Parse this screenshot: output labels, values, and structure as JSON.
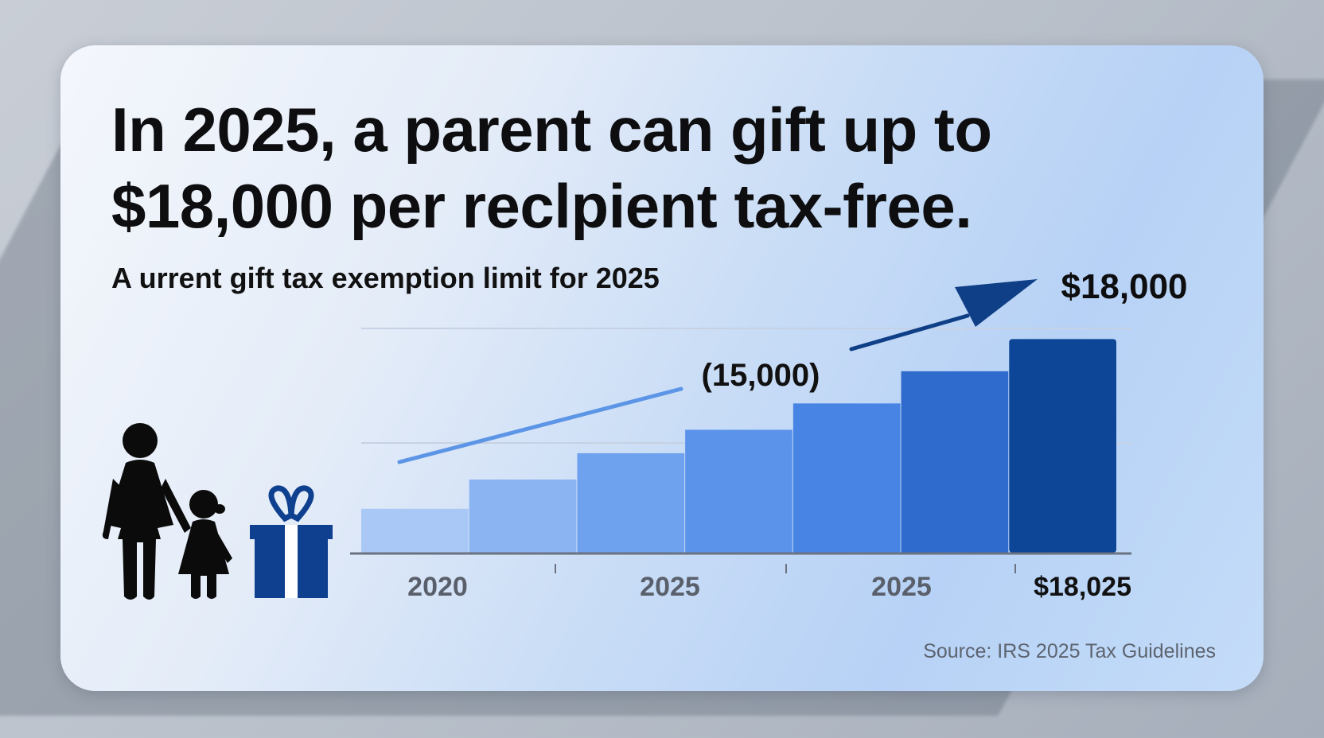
{
  "card": {
    "title": "In 2025, a parent can gift up to $18,000 per reclpient tax-free.",
    "subtitle": "A urrent gift tax exemption limit for 2025",
    "source": "Source: IRS 2025 Tax Guidelines"
  },
  "colors": {
    "bars": [
      "#a9c8f6",
      "#8ab4f2",
      "#6ea2ee",
      "#5b92ea",
      "#4884e3",
      "#2f6bcc",
      "#0d4597"
    ],
    "trend_light": "#5d95e6",
    "trend_dark": "#0f3f86",
    "gift_box": "#0f3f8f"
  },
  "icons": [
    "parent-icon",
    "child-icon",
    "gift-box-icon"
  ],
  "chart_data": {
    "type": "bar",
    "categories": [
      "",
      "",
      "",
      "",
      "",
      "",
      ""
    ],
    "values": [
      15,
      25,
      34,
      42,
      51,
      62,
      73
    ],
    "ylim": [
      0,
      100
    ],
    "x_tick_labels": [
      "2020",
      "2025",
      "2025",
      "$18,025"
    ],
    "annotations": [
      {
        "text": "(15,000)"
      },
      {
        "text": "$18,000"
      }
    ],
    "grid": true
  }
}
